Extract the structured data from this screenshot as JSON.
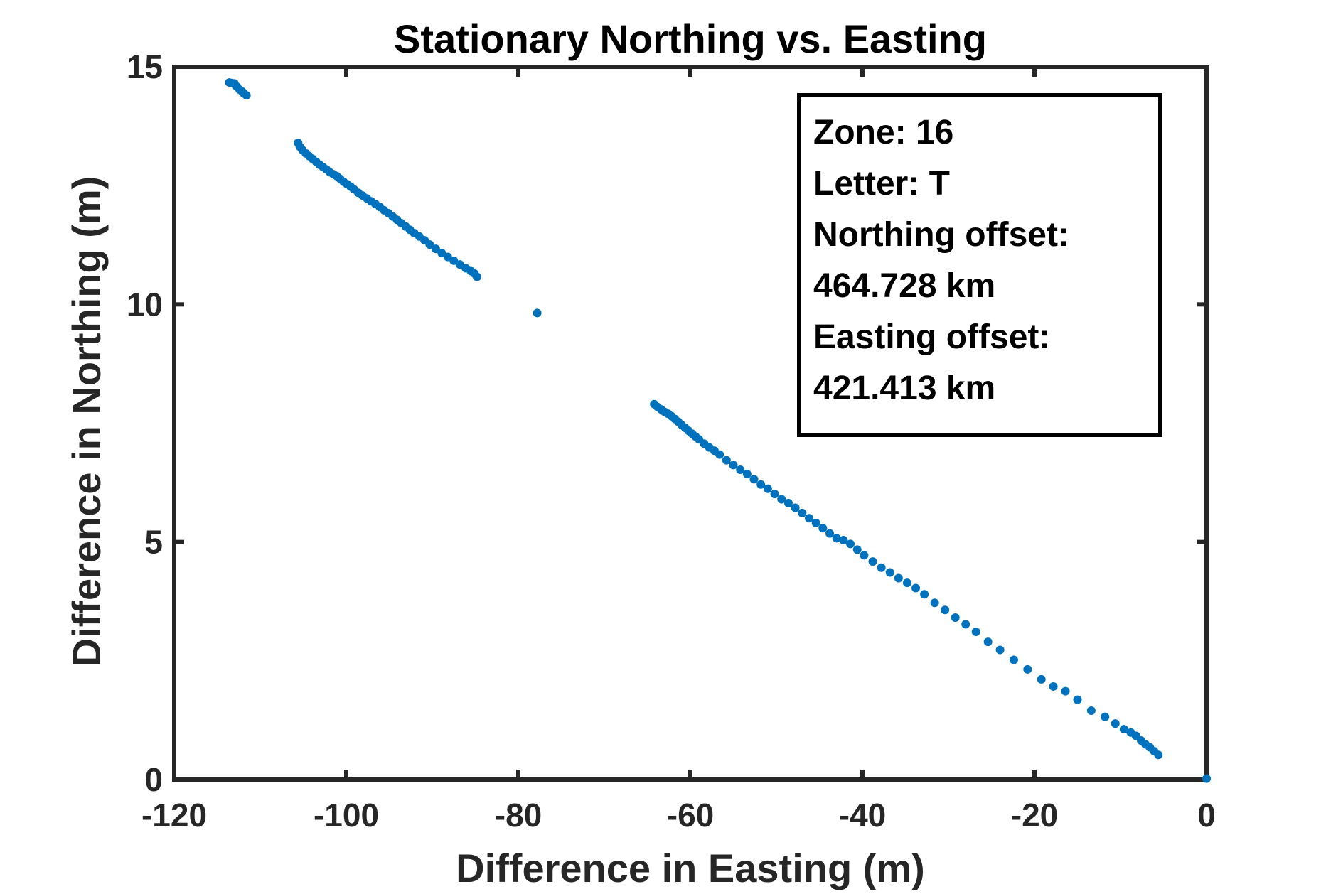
{
  "chart_data": {
    "type": "scatter",
    "title": "Stationary Northing vs. Easting",
    "xlabel": "Difference in Easting (m)",
    "ylabel": "Difference in Northing (m)",
    "xlim": [
      -120,
      0
    ],
    "ylim": [
      0,
      15
    ],
    "xticks": [
      -120,
      -100,
      -80,
      -60,
      -40,
      -20,
      0
    ],
    "yticks": [
      0,
      5,
      10,
      15
    ],
    "xtick_labels": [
      "-120",
      "-100",
      "-80",
      "-60",
      "-40",
      "-20",
      "0"
    ],
    "ytick_labels": [
      "0",
      "5",
      "10",
      "15"
    ],
    "grid": false,
    "marker_color": "#0072BD",
    "axis_color": "#262626",
    "annotation": {
      "lines": [
        "Zone: 16",
        "Letter: T",
        "Northing offset:",
        "464.728 km",
        "Easting offset:",
        "421.413 km"
      ],
      "placement": "top-right"
    },
    "series": [
      {
        "x": [
          -113.6,
          -113.3,
          -113.0,
          -112.7,
          -112.4,
          -112.1,
          -111.9,
          -111.6,
          -105.6,
          -105.4,
          -105.1,
          -104.7,
          -104.3,
          -103.9,
          -103.5,
          -103.1,
          -102.7,
          -102.3,
          -101.9,
          -101.5,
          -101.1,
          -100.7,
          -100.3,
          -99.9,
          -99.5,
          -99.1,
          -98.6,
          -98.1,
          -97.6,
          -97.1,
          -96.6,
          -96.1,
          -95.6,
          -95.1,
          -94.6,
          -94.1,
          -93.6,
          -93.1,
          -92.6,
          -92.1,
          -91.5,
          -90.9,
          -90.3,
          -89.6,
          -88.9,
          -88.2,
          -87.5,
          -86.8,
          -86.1,
          -85.5,
          -85.1,
          -84.8,
          -77.8,
          -64.2,
          -63.8,
          -63.4,
          -63.0,
          -62.6,
          -62.2,
          -61.8,
          -61.4,
          -61.0,
          -60.6,
          -60.2,
          -59.8,
          -59.4,
          -59.0,
          -58.4,
          -57.8,
          -57.2,
          -56.6,
          -55.8,
          -55.0,
          -54.2,
          -53.4,
          -52.6,
          -51.8,
          -51.0,
          -50.2,
          -49.4,
          -48.6,
          -47.8,
          -47.0,
          -46.2,
          -45.4,
          -44.6,
          -43.8,
          -43.0,
          -42.2,
          -41.4,
          -40.6,
          -39.8,
          -38.8,
          -37.8,
          -36.8,
          -35.8,
          -34.8,
          -33.8,
          -32.8,
          -31.6,
          -30.4,
          -29.2,
          -28.0,
          -26.8,
          -25.4,
          -24.0,
          -22.4,
          -20.8,
          -19.2,
          -17.8,
          -16.4,
          -15.0,
          -13.4,
          -11.8,
          -10.6,
          -9.6,
          -8.8,
          -8.2,
          -7.6,
          -7.1,
          -6.6,
          -6.1,
          -5.6,
          0.0
        ],
        "y": [
          14.67,
          14.66,
          14.65,
          14.58,
          14.52,
          14.48,
          14.44,
          14.4,
          13.4,
          13.32,
          13.25,
          13.18,
          13.12,
          13.06,
          13.0,
          12.94,
          12.89,
          12.84,
          12.78,
          12.74,
          12.7,
          12.64,
          12.58,
          12.53,
          12.48,
          12.42,
          12.35,
          12.29,
          12.23,
          12.17,
          12.11,
          12.05,
          11.98,
          11.92,
          11.85,
          11.78,
          11.71,
          11.64,
          11.57,
          11.5,
          11.43,
          11.35,
          11.26,
          11.17,
          11.08,
          11.0,
          10.92,
          10.84,
          10.76,
          10.7,
          10.65,
          10.58,
          9.82,
          7.9,
          7.84,
          7.79,
          7.74,
          7.7,
          7.65,
          7.59,
          7.53,
          7.46,
          7.4,
          7.34,
          7.28,
          7.22,
          7.16,
          7.07,
          6.99,
          6.92,
          6.84,
          6.72,
          6.62,
          6.52,
          6.43,
          6.32,
          6.21,
          6.12,
          6.01,
          5.9,
          5.82,
          5.72,
          5.61,
          5.5,
          5.4,
          5.29,
          5.18,
          5.08,
          5.04,
          4.96,
          4.84,
          4.72,
          4.59,
          4.46,
          4.36,
          4.24,
          4.14,
          4.03,
          3.9,
          3.72,
          3.57,
          3.41,
          3.27,
          3.11,
          2.9,
          2.73,
          2.52,
          2.32,
          2.11,
          1.96,
          1.86,
          1.68,
          1.45,
          1.32,
          1.18,
          1.06,
          0.99,
          0.92,
          0.82,
          0.74,
          0.68,
          0.6,
          0.52,
          0.02
        ]
      }
    ]
  }
}
